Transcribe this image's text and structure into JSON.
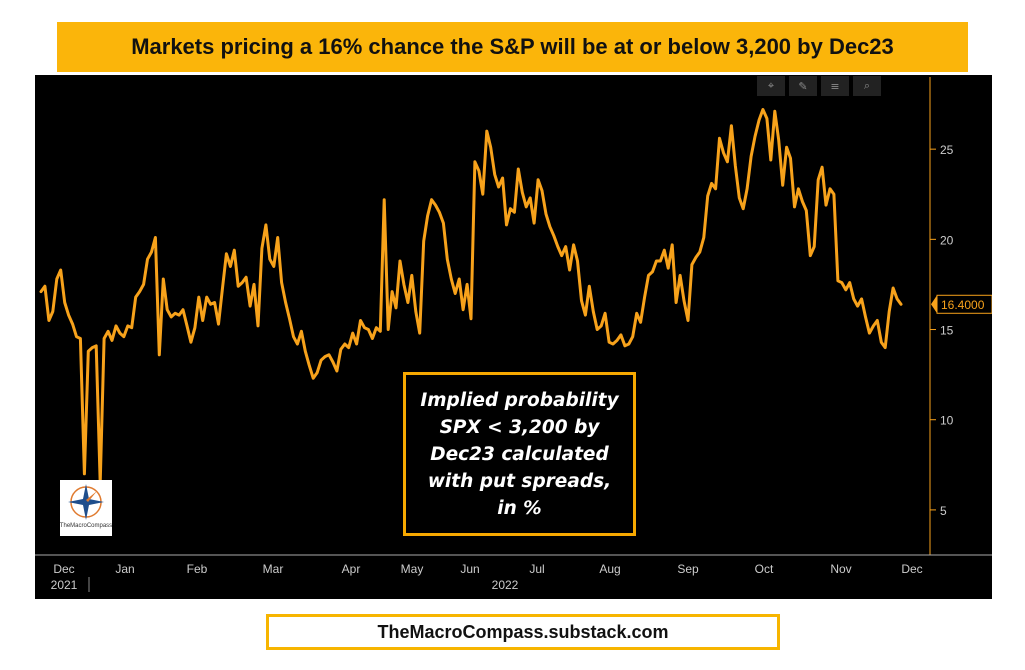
{
  "title": "Markets pricing a 16% chance the S&P will be at or below 3,200 by Dec23",
  "footer": "TheMacroCompass.substack.com",
  "annotation": "Implied probability\nSPX < 3,200 by\nDec23 calculated\nwith put spreads,\nin %",
  "logo": {
    "icon": "compass-star-icon",
    "text": "TheMacroCompass"
  },
  "toolbar": {
    "icons": [
      "crosshair-icon",
      "pencil-icon",
      "list-icon",
      "zoom-icon"
    ]
  },
  "colors": {
    "line": "#f7a21b",
    "axis": "#f7a21b",
    "background": "#000000",
    "accent": "#fbb50a"
  },
  "chart_data": {
    "type": "line",
    "title": "",
    "xlabel": "",
    "ylabel": "",
    "ylim": [
      2.5,
      29
    ],
    "y_ticks": [
      5,
      10,
      15,
      20,
      25
    ],
    "x_tick_labels": [
      "Dec",
      "Jan",
      "Feb",
      "Mar",
      "Apr",
      "May",
      "Jun",
      "Jul",
      "Aug",
      "Sep",
      "Oct",
      "Nov",
      "Dec"
    ],
    "x_year_labels": [
      {
        "label": "2021",
        "at": "Dec"
      },
      {
        "label": "2022",
        "at": "Jul"
      }
    ],
    "last_value_label": "16.4000",
    "grid": false,
    "series": [
      {
        "values": [
          17.1,
          17.4,
          15.5,
          16.0,
          17.8,
          18.3,
          16.5,
          15.8,
          15.3,
          14.6,
          14.5,
          7.0,
          13.8,
          14.0,
          14.1,
          6.5,
          14.5,
          14.9,
          14.4,
          15.2,
          14.8,
          14.6,
          15.2,
          15.1,
          16.8,
          17.1,
          17.5,
          18.9,
          19.3,
          20.1,
          13.6,
          17.8,
          16.1,
          15.7,
          15.9,
          15.8,
          16.1,
          15.2,
          14.3,
          15.1,
          16.8,
          15.5,
          16.8,
          16.4,
          16.5,
          15.3,
          17.3,
          19.2,
          18.5,
          19.4,
          17.4,
          17.6,
          17.9,
          16.3,
          17.5,
          15.2,
          19.5,
          20.8,
          18.9,
          18.5,
          20.1,
          17.6,
          16.5,
          15.6,
          14.6,
          14.2,
          14.9,
          13.8,
          13.0,
          12.3,
          12.6,
          13.3,
          13.5,
          13.6,
          13.2,
          12.7,
          13.9,
          14.2,
          14.0,
          14.8,
          14.2,
          15.5,
          15.1,
          15.0,
          14.5,
          15.1,
          14.9,
          22.2,
          15.0,
          17.1,
          16.2,
          18.8,
          17.5,
          16.5,
          18.0,
          16.0,
          14.8,
          19.9,
          21.3,
          22.2,
          21.9,
          21.5,
          20.9,
          18.9,
          17.8,
          17.0,
          17.8,
          16.1,
          17.5,
          15.6,
          24.3,
          23.8,
          22.5,
          26.0,
          25.1,
          23.6,
          22.9,
          23.4,
          20.8,
          21.7,
          21.5,
          23.9,
          22.6,
          21.8,
          22.3,
          20.9,
          23.3,
          22.7,
          21.4,
          20.7,
          20.2,
          19.6,
          19.1,
          19.6,
          18.3,
          19.7,
          18.8,
          16.6,
          15.8,
          17.4,
          16.0,
          15.0,
          15.2,
          15.9,
          14.3,
          14.2,
          14.4,
          14.7,
          14.1,
          14.2,
          14.6,
          15.9,
          15.4,
          16.8,
          18.0,
          18.2,
          18.8,
          18.8,
          19.4,
          18.4,
          19.7,
          16.5,
          18.0,
          16.6,
          15.5,
          18.6,
          19.0,
          19.3,
          20.1,
          22.4,
          23.1,
          22.8,
          25.6,
          24.8,
          24.3,
          26.3,
          24.1,
          22.3,
          21.7,
          22.8,
          24.6,
          25.7,
          26.6,
          27.2,
          26.7,
          24.4,
          27.1,
          25.5,
          23.0,
          25.1,
          24.5,
          21.8,
          22.8,
          22.1,
          21.6,
          19.1,
          19.6,
          23.3,
          24.0,
          21.9,
          22.8,
          22.5,
          17.7,
          17.6,
          17.2,
          17.6,
          16.7,
          16.3,
          16.7,
          15.7,
          14.8,
          15.2,
          15.5,
          14.3,
          14.0,
          16.0,
          17.3,
          16.7,
          16.4
        ]
      }
    ]
  }
}
